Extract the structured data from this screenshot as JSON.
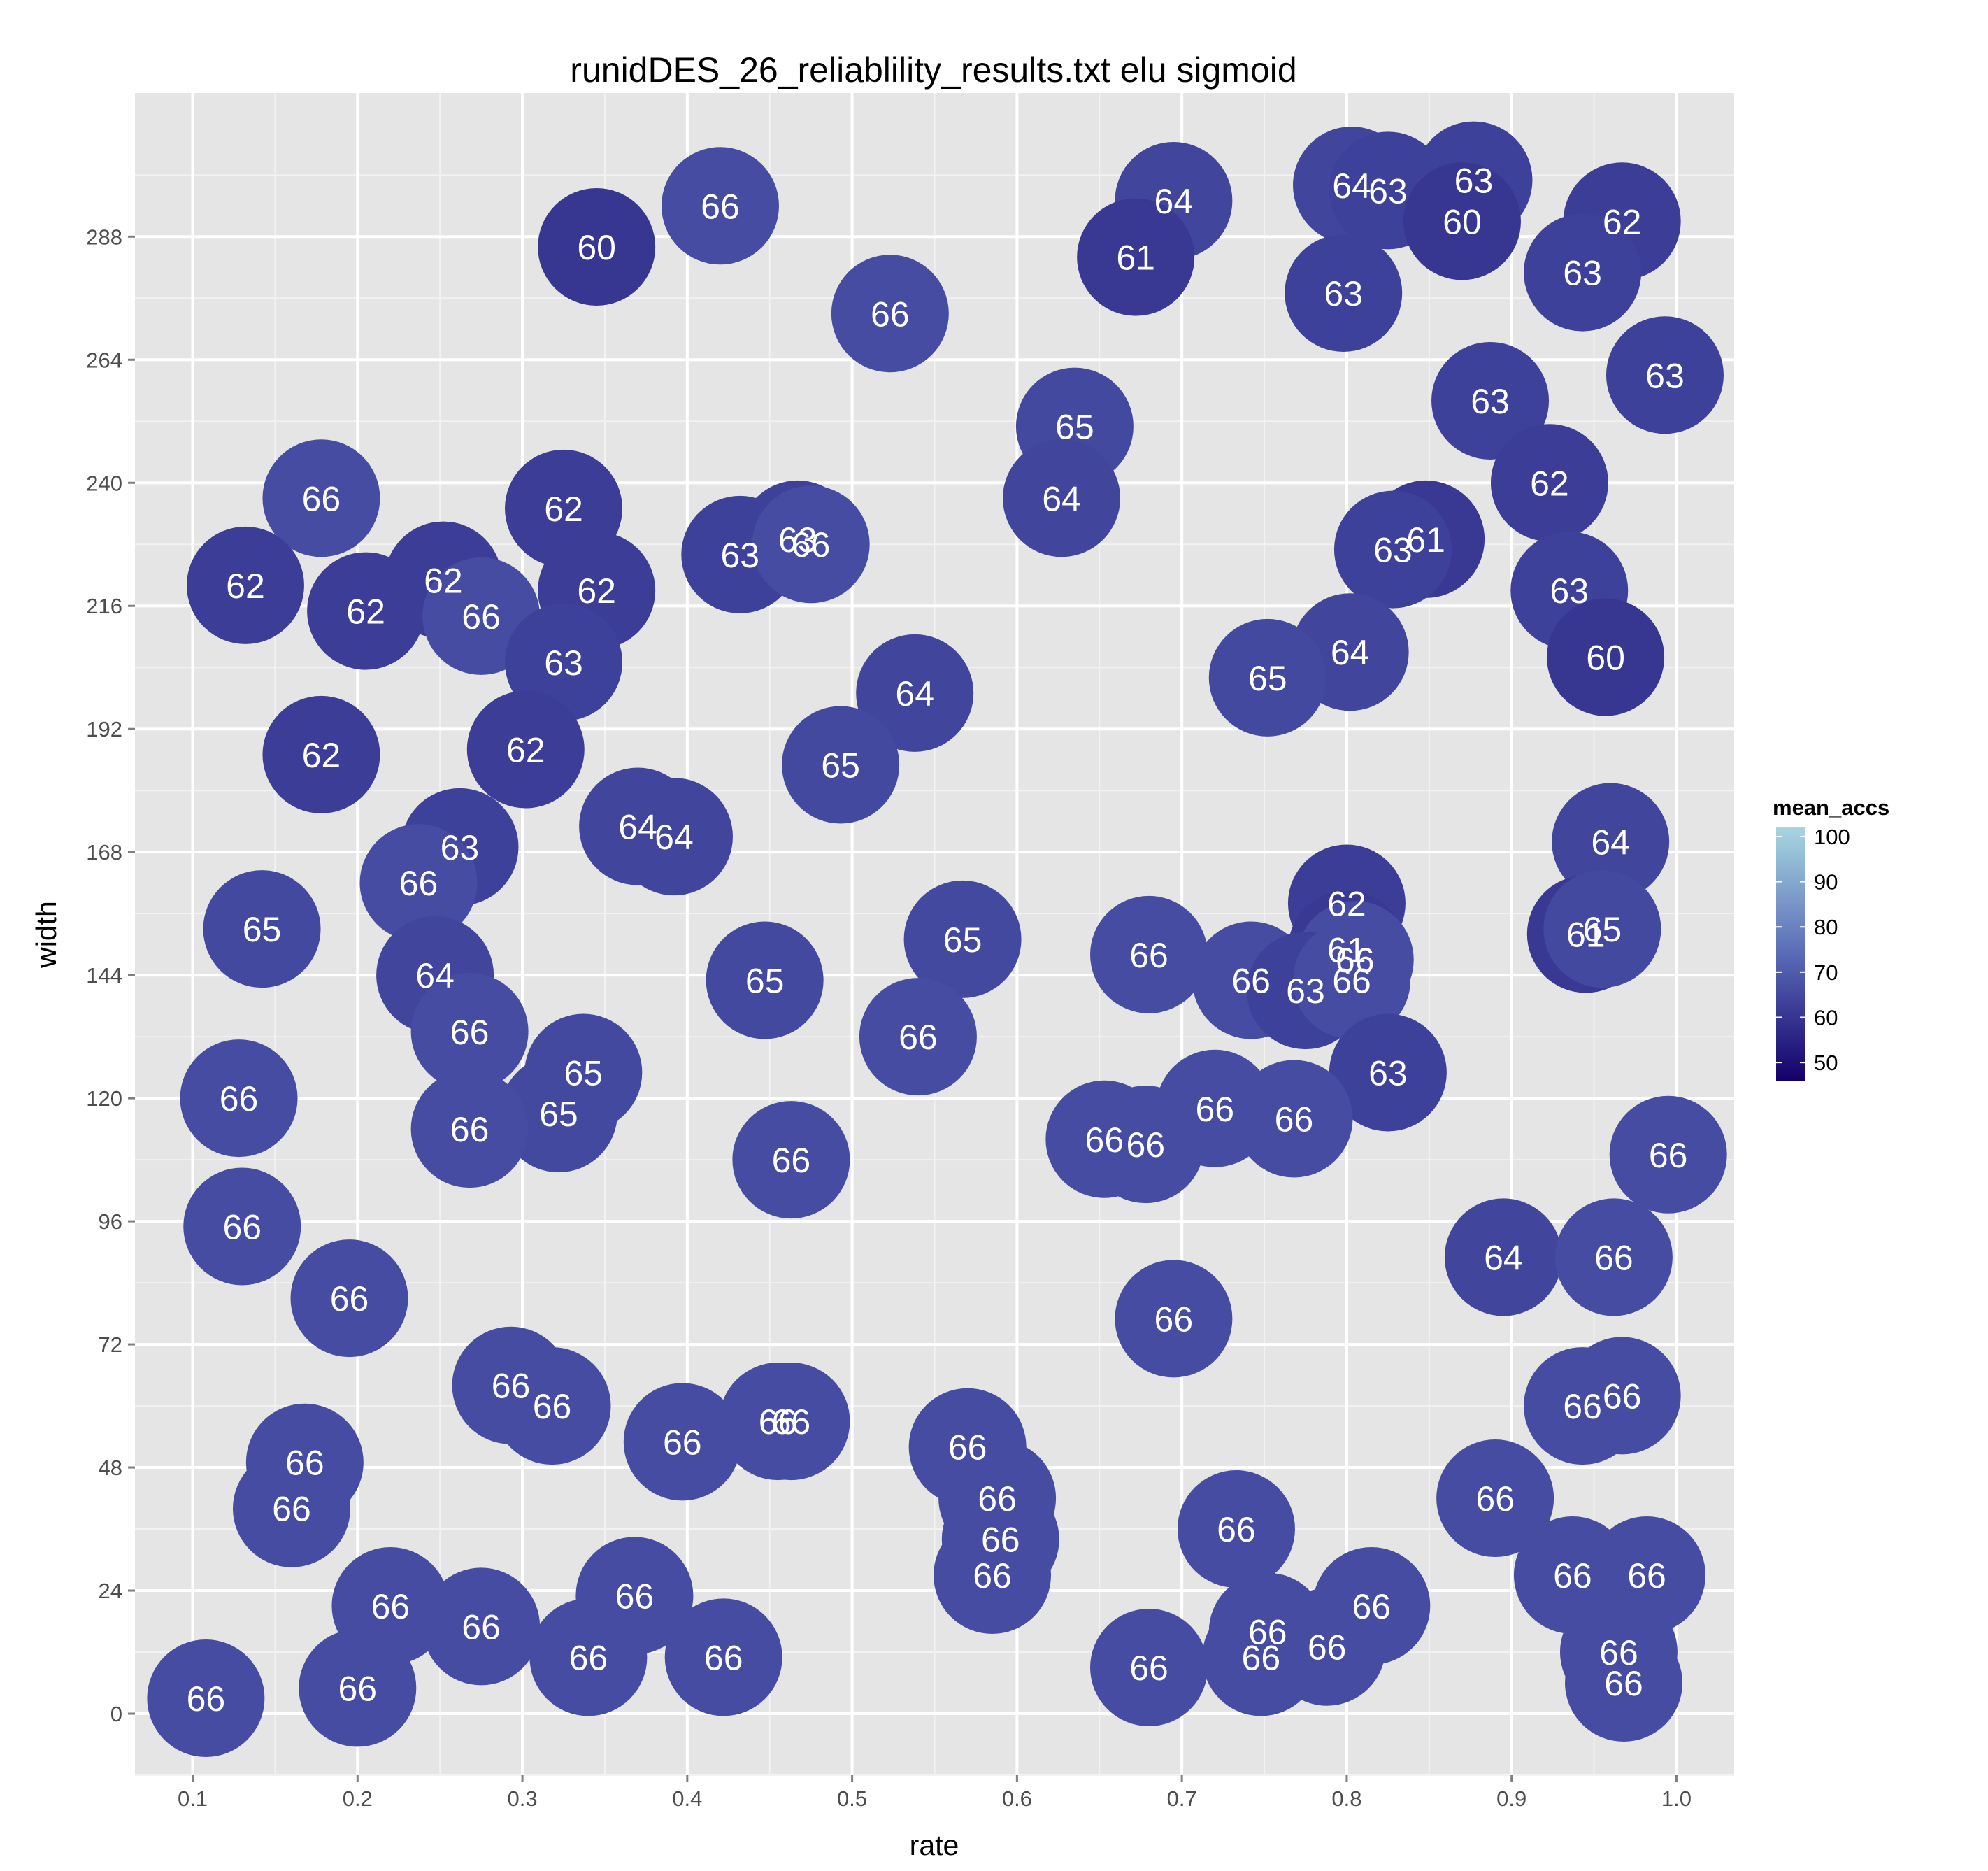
{
  "chart_data": {
    "type": "scatter",
    "title": "runidDES_26_reliablility_results.txt elu sigmoid",
    "xlabel": "rate",
    "ylabel": "width",
    "xlim": [
      0.065,
      1.035
    ],
    "ylim": [
      -12,
      316
    ],
    "x_ticks": [
      "0.1",
      "0.2",
      "0.3",
      "0.4",
      "0.5",
      "0.6",
      "0.7",
      "0.8",
      "0.9",
      "1.0"
    ],
    "y_ticks": [
      "0",
      "24",
      "48",
      "72",
      "96",
      "120",
      "144",
      "168",
      "192",
      "216",
      "240",
      "264",
      "288"
    ],
    "grid": true,
    "legend": {
      "title": "mean_accs",
      "position": "right",
      "labels": [
        "100",
        "90",
        "80",
        "70",
        "60",
        "50"
      ],
      "range": [
        46,
        102
      ],
      "color_low": "#13006b",
      "color_high": "#a6d6e0"
    },
    "points": [
      {
        "x": 0.345,
        "y": 286,
        "value": 60,
        "label": "60"
      },
      {
        "x": 0.42,
        "y": 294,
        "value": 66,
        "label": "66"
      },
      {
        "x": 0.523,
        "y": 273,
        "value": 66,
        "label": "66"
      },
      {
        "x": 0.695,
        "y": 295,
        "value": 64,
        "label": "64"
      },
      {
        "x": 0.672,
        "y": 284,
        "value": 61,
        "label": "61"
      },
      {
        "x": 0.803,
        "y": 298,
        "value": 64,
        "label": "64"
      },
      {
        "x": 0.825,
        "y": 297,
        "value": 63,
        "label": "63"
      },
      {
        "x": 0.877,
        "y": 299,
        "value": 63,
        "label": "63"
      },
      {
        "x": 0.87,
        "y": 291,
        "value": 60,
        "label": "60"
      },
      {
        "x": 0.967,
        "y": 291,
        "value": 62,
        "label": "62"
      },
      {
        "x": 0.943,
        "y": 281,
        "value": 63,
        "label": "63"
      },
      {
        "x": 0.798,
        "y": 277,
        "value": 63,
        "label": "63"
      },
      {
        "x": 0.993,
        "y": 261,
        "value": 63,
        "label": "63"
      },
      {
        "x": 0.887,
        "y": 256,
        "value": 63,
        "label": "63"
      },
      {
        "x": 0.635,
        "y": 251,
        "value": 65,
        "label": "65"
      },
      {
        "x": 0.627,
        "y": 237,
        "value": 64,
        "label": "64"
      },
      {
        "x": 0.923,
        "y": 240,
        "value": 62,
        "label": "62"
      },
      {
        "x": 0.848,
        "y": 229,
        "value": 61,
        "label": "61"
      },
      {
        "x": 0.828,
        "y": 227,
        "value": 63,
        "label": "63"
      },
      {
        "x": 0.935,
        "y": 219,
        "value": 63,
        "label": "63"
      },
      {
        "x": 0.957,
        "y": 206,
        "value": 60,
        "label": "60"
      },
      {
        "x": 0.802,
        "y": 207,
        "value": 64,
        "label": "64"
      },
      {
        "x": 0.752,
        "y": 202,
        "value": 65,
        "label": "65"
      },
      {
        "x": 0.178,
        "y": 237,
        "value": 66,
        "label": "66"
      },
      {
        "x": 0.325,
        "y": 235,
        "value": 62,
        "label": "62"
      },
      {
        "x": 0.432,
        "y": 226,
        "value": 63,
        "label": "63"
      },
      {
        "x": 0.467,
        "y": 229,
        "value": 63,
        "label": "63"
      },
      {
        "x": 0.475,
        "y": 228,
        "value": 66,
        "label": "66"
      },
      {
        "x": 0.132,
        "y": 220,
        "value": 62,
        "label": "62"
      },
      {
        "x": 0.205,
        "y": 215,
        "value": 62,
        "label": "62"
      },
      {
        "x": 0.252,
        "y": 221,
        "value": 62,
        "label": "62"
      },
      {
        "x": 0.275,
        "y": 214,
        "value": 66,
        "label": "66"
      },
      {
        "x": 0.345,
        "y": 219,
        "value": 62,
        "label": "62"
      },
      {
        "x": 0.325,
        "y": 205,
        "value": 63,
        "label": "63"
      },
      {
        "x": 0.538,
        "y": 199,
        "value": 64,
        "label": "64"
      },
      {
        "x": 0.178,
        "y": 187,
        "value": 62,
        "label": "62"
      },
      {
        "x": 0.302,
        "y": 188,
        "value": 62,
        "label": "62"
      },
      {
        "x": 0.493,
        "y": 185,
        "value": 65,
        "label": "65"
      },
      {
        "x": 0.37,
        "y": 173,
        "value": 64,
        "label": "64"
      },
      {
        "x": 0.392,
        "y": 171,
        "value": 64,
        "label": "64"
      },
      {
        "x": 0.262,
        "y": 169,
        "value": 63,
        "label": "63"
      },
      {
        "x": 0.96,
        "y": 170,
        "value": 64,
        "label": "64"
      },
      {
        "x": 0.237,
        "y": 162,
        "value": 66,
        "label": "66"
      },
      {
        "x": 0.142,
        "y": 153,
        "value": 65,
        "label": "65"
      },
      {
        "x": 0.8,
        "y": 158,
        "value": 62,
        "label": "62"
      },
      {
        "x": 0.945,
        "y": 152,
        "value": 61,
        "label": "61"
      },
      {
        "x": 0.955,
        "y": 153,
        "value": 65,
        "label": "65"
      },
      {
        "x": 0.567,
        "y": 151,
        "value": 65,
        "label": "65"
      },
      {
        "x": 0.68,
        "y": 148,
        "value": 66,
        "label": "66"
      },
      {
        "x": 0.8,
        "y": 149,
        "value": 61,
        "label": "61"
      },
      {
        "x": 0.805,
        "y": 147,
        "value": 66,
        "label": "66"
      },
      {
        "x": 0.742,
        "y": 143,
        "value": 66,
        "label": "66"
      },
      {
        "x": 0.775,
        "y": 141,
        "value": 63,
        "label": "63"
      },
      {
        "x": 0.803,
        "y": 143,
        "value": 66,
        "label": "66"
      },
      {
        "x": 0.447,
        "y": 143,
        "value": 65,
        "label": "65"
      },
      {
        "x": 0.247,
        "y": 144,
        "value": 64,
        "label": "64"
      },
      {
        "x": 0.268,
        "y": 133,
        "value": 66,
        "label": "66"
      },
      {
        "x": 0.54,
        "y": 132,
        "value": 66,
        "label": "66"
      },
      {
        "x": 0.337,
        "y": 125,
        "value": 65,
        "label": "65"
      },
      {
        "x": 0.825,
        "y": 125,
        "value": 63,
        "label": "63"
      },
      {
        "x": 0.128,
        "y": 120,
        "value": 66,
        "label": "66"
      },
      {
        "x": 0.322,
        "y": 117,
        "value": 65,
        "label": "65"
      },
      {
        "x": 0.268,
        "y": 114,
        "value": 66,
        "label": "66"
      },
      {
        "x": 0.72,
        "y": 118,
        "value": 66,
        "label": "66"
      },
      {
        "x": 0.768,
        "y": 116,
        "value": 66,
        "label": "66"
      },
      {
        "x": 0.653,
        "y": 112,
        "value": 66,
        "label": "66"
      },
      {
        "x": 0.678,
        "y": 111,
        "value": 66,
        "label": "66"
      },
      {
        "x": 0.463,
        "y": 108,
        "value": 66,
        "label": "66"
      },
      {
        "x": 0.995,
        "y": 109,
        "value": 66,
        "label": "66"
      },
      {
        "x": 0.13,
        "y": 95,
        "value": 66,
        "label": "66"
      },
      {
        "x": 0.895,
        "y": 89,
        "value": 64,
        "label": "64"
      },
      {
        "x": 0.962,
        "y": 89,
        "value": 66,
        "label": "66"
      },
      {
        "x": 0.195,
        "y": 81,
        "value": 66,
        "label": "66"
      },
      {
        "x": 0.695,
        "y": 77,
        "value": 66,
        "label": "66"
      },
      {
        "x": 0.293,
        "y": 64,
        "value": 66,
        "label": "66"
      },
      {
        "x": 0.318,
        "y": 60,
        "value": 66,
        "label": "66"
      },
      {
        "x": 0.967,
        "y": 62,
        "value": 66,
        "label": "66"
      },
      {
        "x": 0.943,
        "y": 60,
        "value": 66,
        "label": "66"
      },
      {
        "x": 0.455,
        "y": 57,
        "value": 66,
        "label": "66"
      },
      {
        "x": 0.463,
        "y": 57,
        "value": 66,
        "label": "66"
      },
      {
        "x": 0.397,
        "y": 53,
        "value": 66,
        "label": "66"
      },
      {
        "x": 0.57,
        "y": 52,
        "value": 66,
        "label": "66"
      },
      {
        "x": 0.168,
        "y": 49,
        "value": 66,
        "label": "66"
      },
      {
        "x": 0.16,
        "y": 40,
        "value": 66,
        "label": "66"
      },
      {
        "x": 0.588,
        "y": 42,
        "value": 66,
        "label": "66"
      },
      {
        "x": 0.89,
        "y": 42,
        "value": 66,
        "label": "66"
      },
      {
        "x": 0.733,
        "y": 36,
        "value": 66,
        "label": "66"
      },
      {
        "x": 0.59,
        "y": 34,
        "value": 66,
        "label": "66"
      },
      {
        "x": 0.585,
        "y": 27,
        "value": 66,
        "label": "66"
      },
      {
        "x": 0.937,
        "y": 27,
        "value": 66,
        "label": "66"
      },
      {
        "x": 0.982,
        "y": 27,
        "value": 66,
        "label": "66"
      },
      {
        "x": 0.368,
        "y": 23,
        "value": 66,
        "label": "66"
      },
      {
        "x": 0.22,
        "y": 21,
        "value": 66,
        "label": "66"
      },
      {
        "x": 0.815,
        "y": 21,
        "value": 66,
        "label": "66"
      },
      {
        "x": 0.275,
        "y": 17,
        "value": 66,
        "label": "66"
      },
      {
        "x": 0.752,
        "y": 16,
        "value": 66,
        "label": "66"
      },
      {
        "x": 0.788,
        "y": 13,
        "value": 66,
        "label": "66"
      },
      {
        "x": 0.34,
        "y": 11,
        "value": 66,
        "label": "66"
      },
      {
        "x": 0.422,
        "y": 11,
        "value": 66,
        "label": "66"
      },
      {
        "x": 0.748,
        "y": 11,
        "value": 66,
        "label": "66"
      },
      {
        "x": 0.68,
        "y": 9,
        "value": 66,
        "label": "66"
      },
      {
        "x": 0.965,
        "y": 12,
        "value": 66,
        "label": "66"
      },
      {
        "x": 0.968,
        "y": 6,
        "value": 66,
        "label": "66"
      },
      {
        "x": 0.2,
        "y": 5,
        "value": 66,
        "label": "66"
      },
      {
        "x": 0.108,
        "y": 3,
        "value": 66,
        "label": "66"
      }
    ]
  }
}
